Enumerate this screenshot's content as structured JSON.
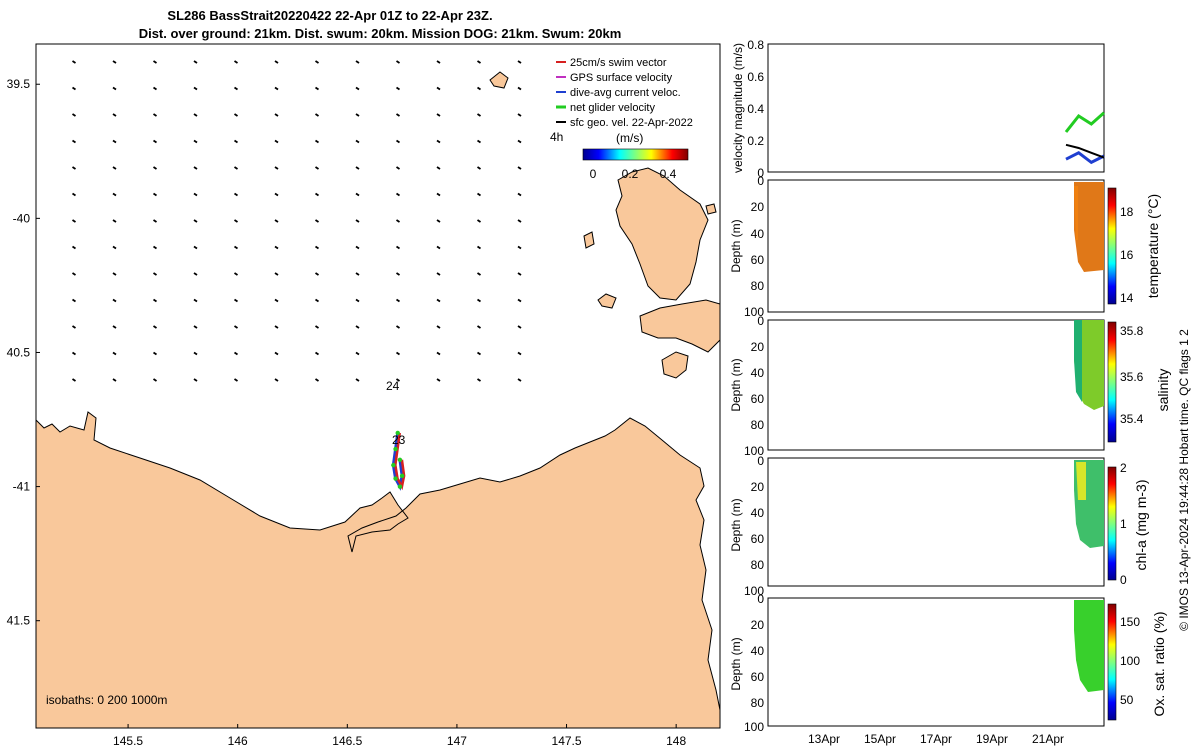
{
  "title": {
    "line1": "SL286 BassStrait20220422 22-Apr 01Z to 22-Apr 23Z.",
    "line2": "Dist. over ground: 21km. Dist. swum: 20km. Mission DOG: 21km. Swum: 20km"
  },
  "map": {
    "lon_ticks": [
      "145.5",
      "146",
      "146.5",
      "147",
      "147.5",
      "148"
    ],
    "lon_values": [
      145.5,
      146,
      146.5,
      147,
      147.5,
      148
    ],
    "lat_ticks": [
      "39.5",
      "-40",
      "40.5",
      "-41",
      "41.5"
    ],
    "lat_values": [
      -39.5,
      -40,
      -40.5,
      -41,
      -41.5
    ],
    "xlim": [
      145.08,
      148.2
    ],
    "ylim": [
      -41.9,
      -39.35
    ],
    "legend": [
      {
        "label": "25cm/s swim vector",
        "color": "#d62020"
      },
      {
        "label": "GPS surface velocity",
        "color": "#c030c0"
      },
      {
        "label": "dive-avg current veloc.",
        "color": "#1f3fd0"
      },
      {
        "label": "net glider velocity",
        "color": "#22cc22"
      },
      {
        "label": "sfc geo. vel. 22-Apr-2022",
        "color": "#000000"
      }
    ],
    "time_label": "4h",
    "colorbar": {
      "label": "(m/s)",
      "ticks": [
        "0",
        "0.2",
        "0.4"
      ]
    },
    "annotations": [
      "24",
      "23"
    ],
    "isobaths": "isobaths: 0   200  1000m",
    "colors": {
      "land": "#f9c89b",
      "track_red": "#d62020",
      "track_blue": "#1f3fd0",
      "track_green": "#22cc22"
    }
  },
  "panels": {
    "date_ticks": [
      "13Apr",
      "15Apr",
      "17Apr",
      "19Apr",
      "21Apr"
    ],
    "velocity": {
      "ylabel": "velocity magnitude (m/s)",
      "yticks": [
        "0",
        "0.2",
        "0.4",
        "0.6",
        "0.8"
      ],
      "ylim": [
        0,
        0.8
      ]
    },
    "temperature": {
      "ylabel": "Depth (m)",
      "yticks": [
        "0",
        "20",
        "40",
        "60",
        "80",
        "100"
      ],
      "cbar_label": "temperature (°C)",
      "cbar_ticks": [
        "14",
        "16",
        "18"
      ]
    },
    "salinity": {
      "ylabel": "Depth (m)",
      "yticks": [
        "0",
        "20",
        "40",
        "60",
        "80",
        "100"
      ],
      "cbar_label": "salinity",
      "cbar_ticks": [
        "35.4",
        "35.6",
        "35.8"
      ]
    },
    "chla": {
      "ylabel": "Depth (m)",
      "yticks": [
        "0",
        "20",
        "40",
        "60",
        "80",
        "100"
      ],
      "cbar_label": "chl-a (mg m-3)",
      "cbar_ticks": [
        "0",
        "1",
        "2"
      ]
    },
    "oxygen": {
      "ylabel": "Depth (m)",
      "yticks": [
        "0",
        "20",
        "40",
        "60",
        "80",
        "100"
      ],
      "cbar_label": "Ox. sat. ratio (%)",
      "cbar_ticks": [
        "50",
        "100",
        "150"
      ]
    }
  },
  "side_note": "© IMOS 13-Apr-2024 19:44:28 Hobart time. QC flags 1  2",
  "chart_data": [
    {
      "type": "scatter",
      "title": "SL286 BassStrait20220422 22-Apr 01Z to 22-Apr 23Z.",
      "xlabel": "",
      "ylabel": "",
      "xlim": [
        145.08,
        148.2
      ],
      "ylim": [
        -41.9,
        -39.35
      ],
      "series": [
        {
          "name": "net glider velocity",
          "x": [
            146.73,
            146.72,
            146.71,
            146.72,
            146.74,
            146.75,
            146.74
          ],
          "y": [
            -40.8,
            -40.86,
            -40.92,
            -40.97,
            -41.0,
            -40.96,
            -40.9
          ]
        }
      ],
      "grid": false
    },
    {
      "type": "line",
      "ylabel": "velocity magnitude (m/s)",
      "x": [
        "21Apr",
        "22Apr",
        "22Apr",
        "23Apr"
      ],
      "ylim": [
        0,
        0.8
      ],
      "series": [
        {
          "name": "net glider velocity",
          "values": [
            0.25,
            0.35,
            0.3,
            0.37
          ]
        },
        {
          "name": "dive-avg current veloc.",
          "values": [
            0.08,
            0.12,
            0.06,
            0.1
          ]
        },
        {
          "name": "sfc geo. vel. 22-Apr-2022",
          "values": [
            0.17,
            0.15,
            0.12,
            0.09
          ]
        }
      ]
    },
    {
      "type": "heatmap",
      "ylabel": "Depth (m)",
      "cbar_label": "temperature (°C)",
      "clim": [
        13.5,
        19
      ]
    },
    {
      "type": "heatmap",
      "ylabel": "Depth (m)",
      "cbar_label": "salinity",
      "clim": [
        35.3,
        35.85
      ]
    },
    {
      "type": "heatmap",
      "ylabel": "Depth (m)",
      "cbar_label": "chl-a (mg m-3)",
      "clim": [
        0,
        2
      ]
    },
    {
      "type": "heatmap",
      "ylabel": "Depth (m)",
      "cbar_label": "Ox. sat. ratio (%)",
      "clim": [
        20,
        175
      ]
    }
  ]
}
